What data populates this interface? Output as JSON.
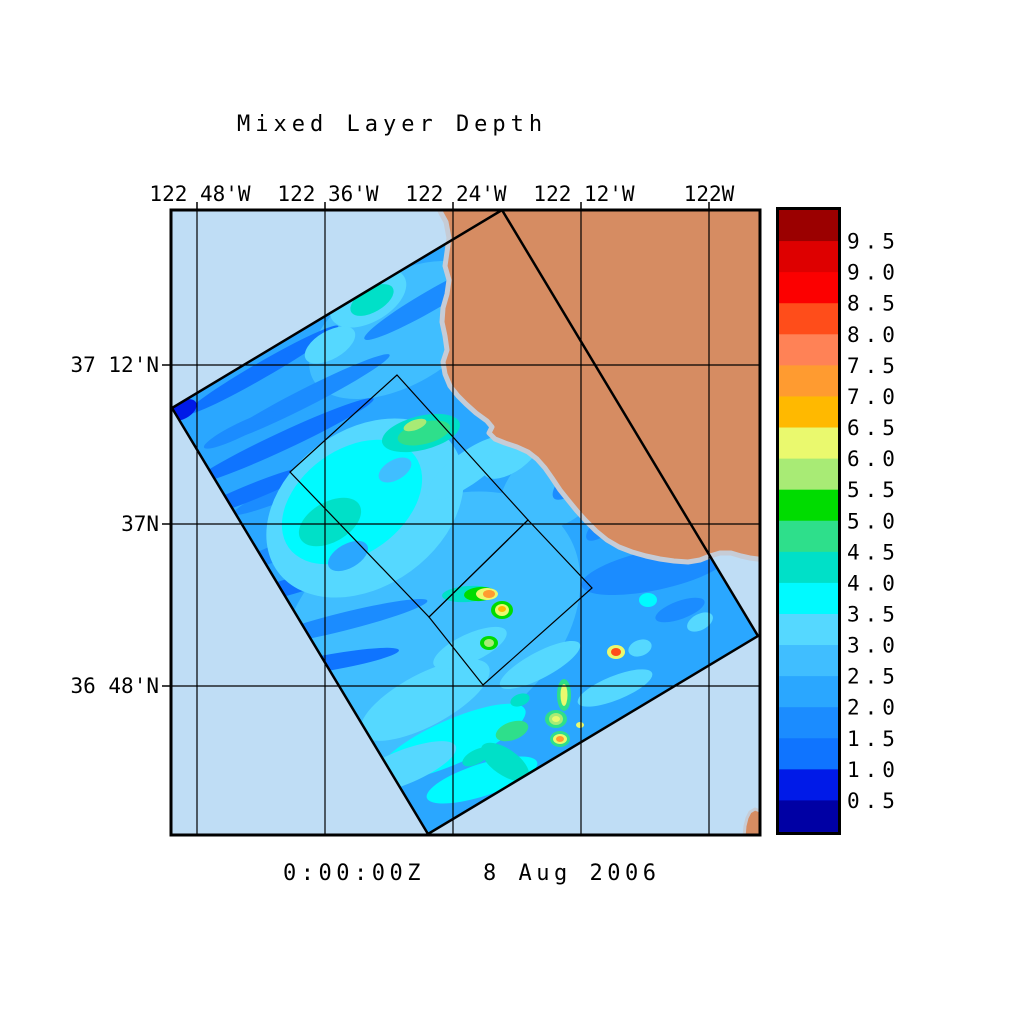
{
  "title": "Mixed Layer Depth",
  "timestamp": {
    "time": "0:00:00Z",
    "date": "8 Aug 2006"
  },
  "axes": {
    "top_labels": [
      "122 48'W",
      "122 36'W",
      "122 24'W",
      "122 12'W",
      "122W"
    ],
    "left_labels": [
      "37 12'N",
      "37N",
      "36 48'N"
    ]
  },
  "colorbar": {
    "tick_labels": [
      "9.5",
      "9.0",
      "8.5",
      "8.0",
      "7.5",
      "7.0",
      "6.5",
      "6.0",
      "5.5",
      "5.0",
      "4.5",
      "4.0",
      "3.5",
      "3.0",
      "2.5",
      "2.0",
      "1.5",
      "1.0",
      "0.5"
    ],
    "band_colors_top_to_bottom": [
      "#9B0000",
      "#DE0000",
      "#FC0000",
      "#FF4D1A",
      "#FF8256",
      "#FF9B30",
      "#FFB900",
      "#EAF96E",
      "#A8EB75",
      "#00DC00",
      "#2EDF8B",
      "#00E0C8",
      "#00FAFF",
      "#55D8FF",
      "#40BEFF",
      "#2AA7FF",
      "#1B8CFF",
      "#0F74FF",
      "#001AE8",
      "#0000A4"
    ]
  },
  "colors": {
    "page_background": "#FFFFFF",
    "ocean_background": "#BFDDF5",
    "land": "#D68C62",
    "coastline_fringe": "#C6CCD6",
    "grid_line": "#000000"
  }
}
